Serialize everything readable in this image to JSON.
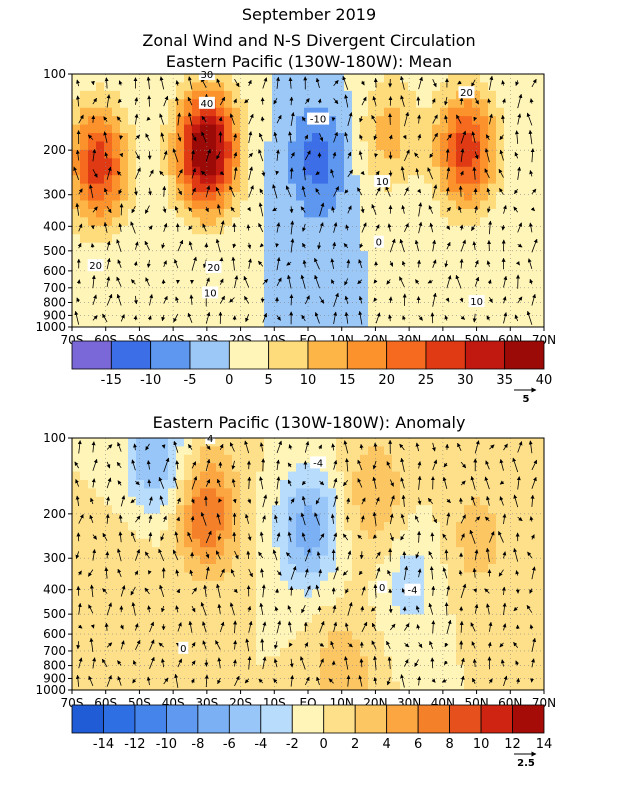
{
  "page": {
    "title_line1": "September 2019",
    "title_line2": "Zonal Wind and N-S Divergent Circulation"
  },
  "chart_data": [
    {
      "type": "heatmap",
      "title": "Eastern Pacific (130W-180W): Mean",
      "x_ticks": [
        "70S",
        "60S",
        "50S",
        "40S",
        "30S",
        "20S",
        "10S",
        "EQ",
        "10N",
        "20N",
        "30N",
        "40N",
        "50N",
        "60N",
        "70N"
      ],
      "y_ticks": [
        "100",
        "200",
        "300",
        "400",
        "500",
        "600",
        "700",
        "800",
        "900",
        "1000"
      ],
      "y_axis": "pressure (log scale), 1000 at bottom, 100 at top",
      "colorbar": {
        "labels": [
          "-15",
          "-10",
          "-5",
          "0",
          "5",
          "10",
          "15",
          "20",
          "25",
          "30",
          "35",
          "40"
        ],
        "colors": [
          "#7a68d8",
          "#3c6ee8",
          "#5d97f0",
          "#9cc8f8",
          "#fff5b8",
          "#fedc7c",
          "#fdb548",
          "#fb922c",
          "#f56a1e",
          "#e03a14",
          "#c11810",
          "#9b0a06"
        ]
      },
      "centers": [
        {
          "lat": -62,
          "p": 230,
          "value": 28
        },
        {
          "lat": -30,
          "p": 200,
          "value": 42
        },
        {
          "lat": 3,
          "p": 220,
          "value": -12
        },
        {
          "lat": 24,
          "p": 170,
          "value": 12
        },
        {
          "lat": 47,
          "p": 200,
          "value": 28
        }
      ],
      "contour_labels": [
        {
          "text": "30",
          "lat": -30,
          "p": 100
        },
        {
          "text": "40",
          "lat": -30,
          "p": 130
        },
        {
          "text": "-10",
          "lat": 3,
          "p": 150
        },
        {
          "text": "20",
          "lat": 47,
          "p": 118
        },
        {
          "text": "10",
          "lat": 22,
          "p": 265
        },
        {
          "text": "0",
          "lat": 21,
          "p": 460
        },
        {
          "text": "20",
          "lat": -63,
          "p": 570
        },
        {
          "text": "20",
          "lat": -28,
          "p": 580
        },
        {
          "text": "10",
          "lat": -29,
          "p": 730
        },
        {
          "text": "10",
          "lat": 50,
          "p": 790
        }
      ],
      "reference_vector": "5"
    },
    {
      "type": "heatmap",
      "title": "Eastern Pacific (130W-180W): Anomaly",
      "x_ticks": [
        "70S",
        "60S",
        "50S",
        "40S",
        "30S",
        "20S",
        "10S",
        "EQ",
        "10N",
        "20N",
        "30N",
        "40N",
        "50N",
        "60N",
        "70N"
      ],
      "y_ticks": [
        "100",
        "200",
        "300",
        "400",
        "500",
        "600",
        "700",
        "800",
        "900",
        "1000"
      ],
      "y_axis": "pressure (log scale), 1000 at bottom, 100 at top",
      "colorbar": {
        "labels": [
          "-14",
          "-12",
          "-10",
          "-8",
          "-6",
          "-4",
          "-2",
          "0",
          "2",
          "4",
          "6",
          "8",
          "10",
          "12",
          "14"
        ],
        "colors": [
          "#1f5cd6",
          "#2e6fe4",
          "#4584ea",
          "#5f9af0",
          "#7bb0f4",
          "#98c6f8",
          "#b8dcfc",
          "#fff5b8",
          "#fee08a",
          "#fcc662",
          "#fba640",
          "#f5802a",
          "#e6501c",
          "#cf2412",
          "#a50c08"
        ]
      },
      "centers": [
        {
          "lat": -45,
          "p": 120,
          "value": -6
        },
        {
          "lat": -30,
          "p": 200,
          "value": 8
        },
        {
          "lat": 0,
          "p": 230,
          "value": -7
        },
        {
          "lat": 20,
          "p": 170,
          "value": 4
        },
        {
          "lat": 50,
          "p": 250,
          "value": 3
        },
        {
          "lat": -55,
          "p": 380,
          "value": 2
        },
        {
          "lat": 10,
          "p": 880,
          "value": 4
        },
        {
          "lat": 30,
          "p": 370,
          "value": -3
        }
      ],
      "contour_labels": [
        {
          "text": "4",
          "lat": -29,
          "p": 100
        },
        {
          "text": "-4",
          "lat": 3,
          "p": 125
        },
        {
          "text": "0",
          "lat": 22,
          "p": 390
        },
        {
          "text": "-4",
          "lat": 31,
          "p": 400
        },
        {
          "text": "0",
          "lat": -37,
          "p": 680
        }
      ],
      "reference_vector": "2.5"
    }
  ]
}
